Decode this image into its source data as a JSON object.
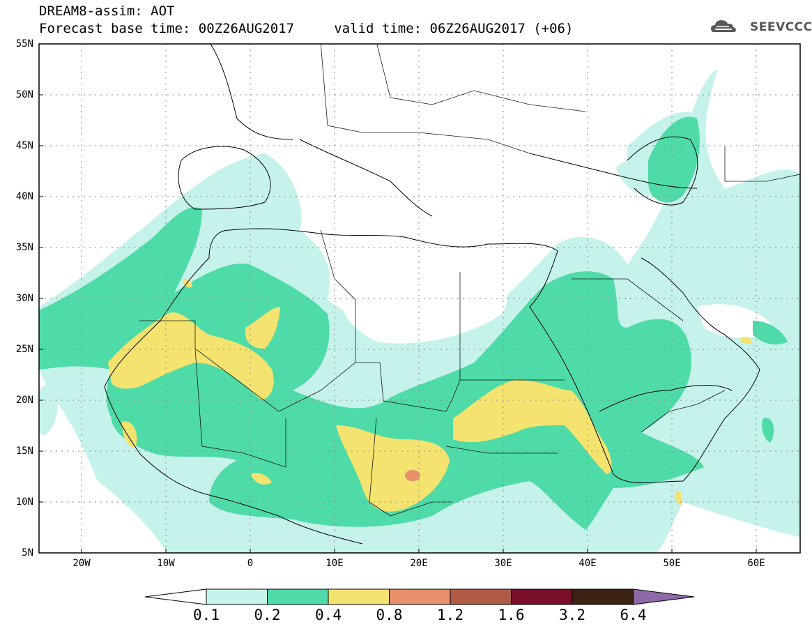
{
  "header": {
    "line1": "DREAM8-assim: AOT",
    "line2": "Forecast base time: 00Z26AUG2017     valid time: 06Z26AUG2017 (+06)",
    "logo_text": "SEEVCCC"
  },
  "map": {
    "lon_range": [
      -25,
      65
    ],
    "lat_range": [
      5,
      55
    ],
    "grid": true,
    "lat_labels": [
      "55N",
      "50N",
      "45N",
      "40N",
      "35N",
      "30N",
      "25N",
      "20N",
      "15N",
      "10N",
      "5N"
    ],
    "lon_labels": [
      "20W",
      "10W",
      "0",
      "10E",
      "20E",
      "30E",
      "40E",
      "50E",
      "60E"
    ]
  },
  "colorbar": {
    "labels": [
      "0.1",
      "0.2",
      "0.4",
      "0.8",
      "1.2",
      "1.6",
      "3.2",
      "6.4"
    ],
    "colors": [
      "#c6f2ec",
      "#4fdba7",
      "#f5e36f",
      "#e8906a",
      "#b05a48",
      "#7a0f2a",
      "#3b2313",
      "#8e6aa8"
    ]
  }
}
